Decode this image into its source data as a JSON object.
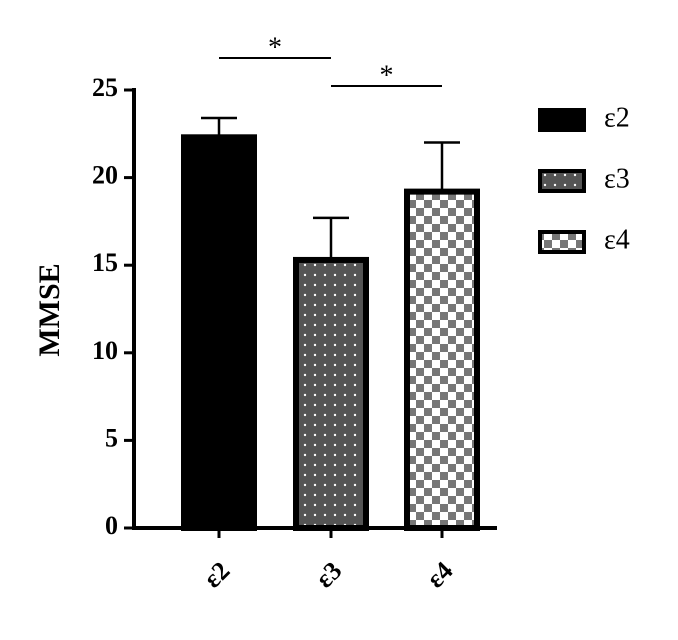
{
  "chart_data": {
    "type": "bar",
    "ylabel": "MMSE",
    "categories": [
      "ε2",
      "ε3",
      "ε4"
    ],
    "values": [
      22.3,
      15.3,
      19.2
    ],
    "errors": [
      1.1,
      2.4,
      2.8
    ],
    "fills": [
      "solid",
      "dots",
      "checker"
    ],
    "color": "#000000",
    "ylim": [
      0,
      25
    ],
    "yticks": [
      0,
      5,
      10,
      15,
      20,
      25
    ],
    "annotations": [
      "*",
      "*"
    ],
    "legend": "right"
  }
}
